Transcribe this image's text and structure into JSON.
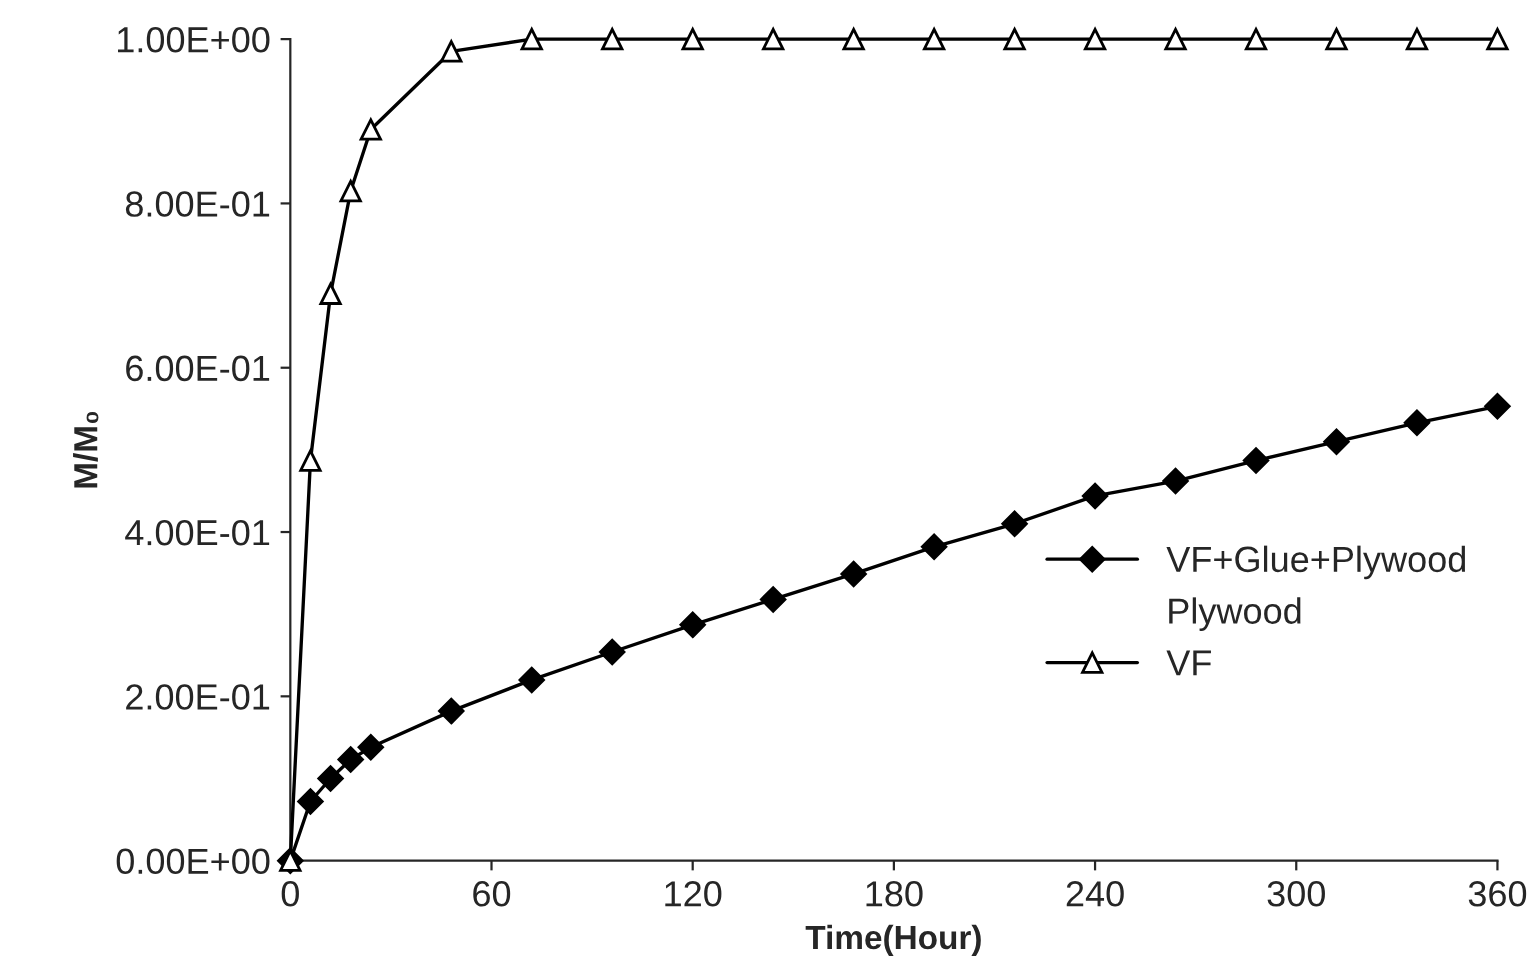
{
  "chart_data": {
    "type": "line",
    "xlabel": "Time(Hour)",
    "ylabel": "M/M₀",
    "xlim": [
      0,
      360
    ],
    "xticks": [
      0,
      60,
      120,
      180,
      240,
      300,
      360
    ],
    "ylim": [
      0,
      1
    ],
    "yticks": [
      {
        "value": 0,
        "label": "0.00E+00"
      },
      {
        "value": 0.2,
        "label": "2.00E-01"
      },
      {
        "value": 0.4,
        "label": "4.00E-01"
      },
      {
        "value": 0.6,
        "label": "6.00E-01"
      },
      {
        "value": 0.8,
        "label": "8.00E-01"
      },
      {
        "value": 1,
        "label": "1.00E+00"
      }
    ],
    "grid": false,
    "legend": "right",
    "annotations": [
      "Plywood"
    ],
    "series": [
      {
        "name": "VF+Glue+Plywood",
        "color": "#000000",
        "marker": "diamond",
        "x": [
          0,
          6,
          12,
          18,
          24,
          48,
          72,
          96,
          120,
          144,
          168,
          192,
          216,
          240,
          264,
          288,
          312,
          336,
          360
        ],
        "values": [
          0,
          0.072,
          0.1,
          0.123,
          0.138,
          0.182,
          0.22,
          0.254,
          0.287,
          0.318,
          0.349,
          0.382,
          0.41,
          0.444,
          0.462,
          0.487,
          0.51,
          0.533,
          0.553
        ]
      },
      {
        "name": "VF",
        "color": "#000000",
        "marker": "triangle",
        "x": [
          0,
          6,
          12,
          18,
          24,
          48,
          72,
          96,
          120,
          144,
          168,
          192,
          216,
          240,
          264,
          288,
          312,
          336,
          360
        ],
        "values": [
          0,
          0.487,
          0.69,
          0.815,
          0.89,
          0.985,
          1,
          1,
          1,
          1,
          1,
          1,
          1,
          1,
          1,
          1,
          1,
          1,
          1
        ]
      }
    ]
  }
}
